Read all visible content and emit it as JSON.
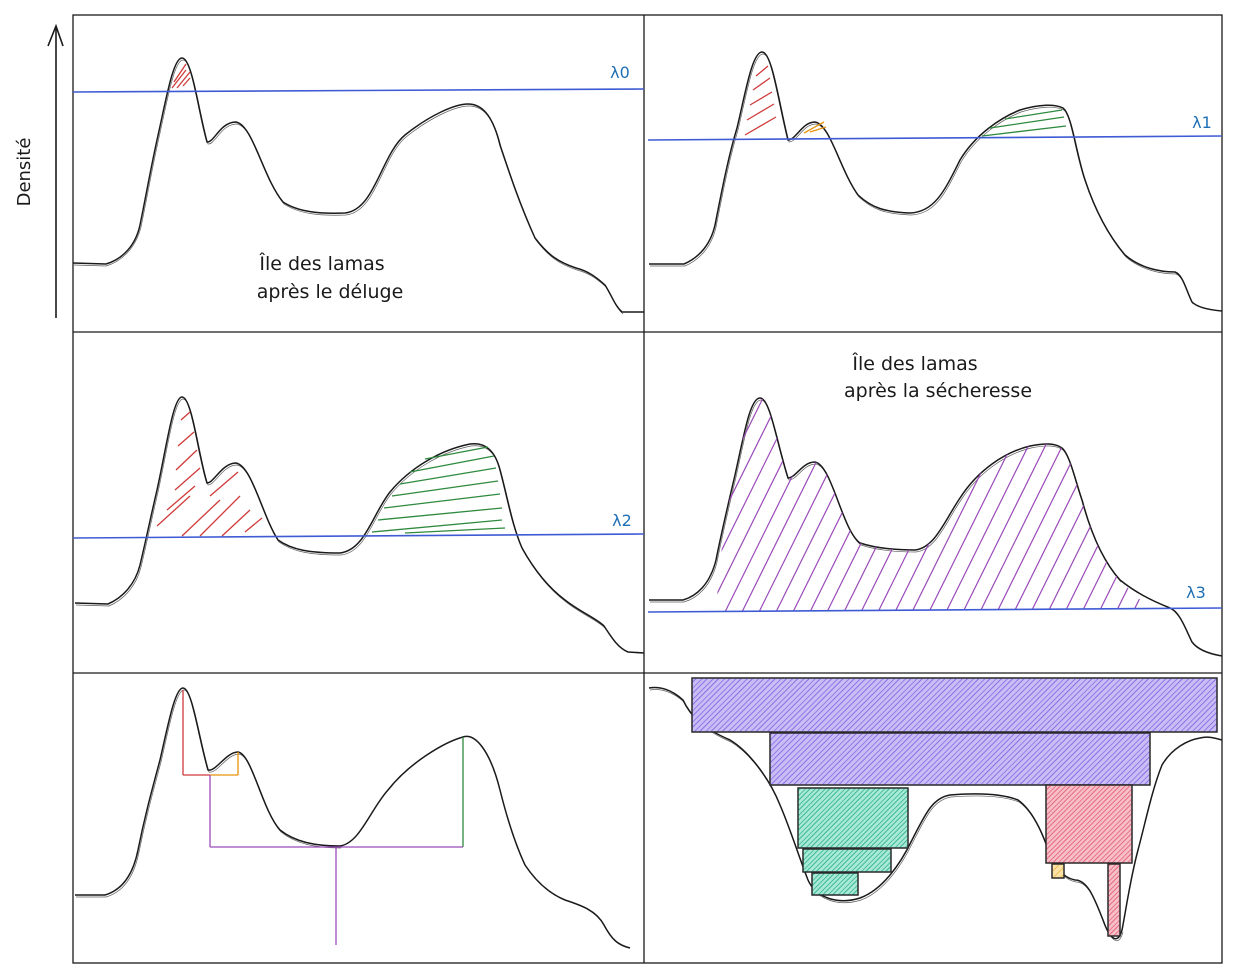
{
  "axis": {
    "ylabel": "Densité"
  },
  "panels": [
    {
      "id": "p1",
      "caption": [
        "Île des lamas",
        "après le déluge"
      ],
      "lambda": "λ0"
    },
    {
      "id": "p2",
      "caption": [],
      "lambda": "λ1"
    },
    {
      "id": "p3",
      "caption": [],
      "lambda": "λ2"
    },
    {
      "id": "p4",
      "caption": [
        "Île des lamas",
        "après la sécheresse"
      ],
      "lambda": "λ3"
    },
    {
      "id": "p5",
      "caption": [],
      "lambda": ""
    },
    {
      "id": "p6",
      "caption": [],
      "lambda": ""
    }
  ],
  "colors": {
    "stroke": "#1a1a1a",
    "threshold": "#3f5bd4",
    "lambda_text": "#1f6fb5",
    "red": "#d03a3a",
    "orange": "#e8930c",
    "green": "#2e8a3e",
    "purple": "#9a4ab8",
    "violet_fill": "#8a6de8",
    "teal_fill": "#36c4a0",
    "pink_fill": "#ec7b8d",
    "yellow_fill": "#f4c15c"
  }
}
